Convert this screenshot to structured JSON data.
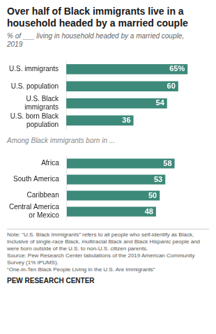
{
  "chart_data": [
    {
      "type": "bar",
      "orientation": "horizontal",
      "title": "Over half of Black immigrants live in a\nhousehold headed by a married couple",
      "subtitle": "% of ___ living in household headed by a married couple,\n2019",
      "categories": [
        "U.S. immigrants",
        "U.S. population",
        "U.S. Black\nimmigrants",
        "U.S. born Black\npopulation"
      ],
      "values": [
        65,
        60,
        54,
        36
      ],
      "value_labels": [
        "65%",
        "60",
        "54",
        "36"
      ],
      "color": "#3d8a7a",
      "xlim": [
        0,
        75
      ],
      "grid": false,
      "tick_labels": "y",
      "data_labels": true
    },
    {
      "type": "bar",
      "orientation": "horizontal",
      "title": "Among Black immigrants born in ...",
      "categories": [
        "Africa",
        "South America",
        "Caribbean",
        "Central America\nor Mexico"
      ],
      "values": [
        58,
        53,
        50,
        48
      ],
      "color": "#3d8a7a",
      "xlim": [
        0,
        75
      ],
      "grid": false,
      "tick_labels": "y",
      "data_labels": true,
      "annotations": [
        "Note: “U.S. Black Immigrants” refers to all people who self-identify as Black, inclusive of single-race Black, multiracial Black and Black Hispanic people and were born outside of the U.S. to non-U.S. citizen parents.\nSource: Pew Research Center tabulations of the 2019 American Community Survey (1% IPUMS).\n“One-in-Ten Black People Living in the U.S. Are Immigrants”",
        "PEW RESEARCH CENTER"
      ]
    }
  ]
}
